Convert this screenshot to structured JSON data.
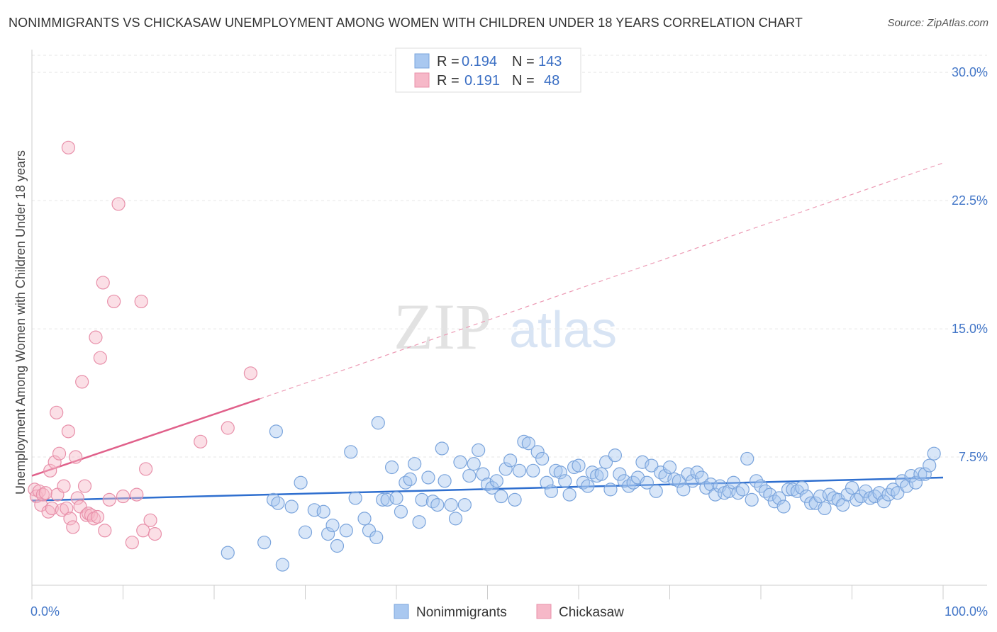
{
  "header": {
    "title": "NONIMMIGRANTS VS CHICKASAW UNEMPLOYMENT AMONG WOMEN WITH CHILDREN UNDER 18 YEARS CORRELATION CHART",
    "source": "Source: ZipAtlas.com"
  },
  "watermark": {
    "zip": "ZIP",
    "atlas": "atlas"
  },
  "legend": {
    "rows": [
      {
        "r_label": "R =",
        "r_value": "0.194",
        "n_label": "N =",
        "n_value": "143",
        "color": "#a9c8f0"
      },
      {
        "r_label": "R =",
        "r_value": "0.191",
        "n_label": "N =",
        "n_value": "48",
        "color": "#f6b8c8"
      }
    ]
  },
  "bottom_legend": [
    "Nonimmigrants",
    "Chickasaw"
  ],
  "chart_data": {
    "type": "scatter",
    "title": "NONIMMIGRANTS VS CHICKASAW UNEMPLOYMENT AMONG WOMEN WITH CHILDREN UNDER 18 YEARS CORRELATION CHART",
    "xlabel": "",
    "ylabel": "Unemployment Among Women with Children Under 18 years",
    "xlim": [
      0,
      100
    ],
    "ylim": [
      0,
      31
    ],
    "x_tick_labels": [
      "0.0%",
      "100.0%"
    ],
    "y_ticks": [
      7.5,
      15.0,
      22.5,
      30.0
    ],
    "y_tick_labels": [
      "7.5%",
      "15.0%",
      "22.5%",
      "30.0%"
    ],
    "grid": "horizontal dashed",
    "legend_position": "top-center",
    "colors": {
      "nonimmigrants": "#6ea0e0",
      "chickasaw": "#ec8aa7",
      "blue_line": "#2f6fcf",
      "pink_line": "#e0608a"
    },
    "series": [
      {
        "name": "Nonimmigrants",
        "points": [
          [
            21.5,
            1.9
          ],
          [
            25.5,
            2.5
          ],
          [
            26.5,
            5.0
          ],
          [
            27.0,
            4.8
          ],
          [
            26.8,
            9.0
          ],
          [
            27.5,
            1.2
          ],
          [
            28.5,
            4.6
          ],
          [
            29.5,
            6.0
          ],
          [
            30.0,
            3.1
          ],
          [
            31.0,
            4.4
          ],
          [
            32.0,
            4.3
          ],
          [
            32.5,
            3.0
          ],
          [
            33.0,
            3.5
          ],
          [
            33.5,
            2.3
          ],
          [
            34.5,
            3.2
          ],
          [
            35.0,
            7.8
          ],
          [
            35.5,
            5.1
          ],
          [
            36.5,
            3.9
          ],
          [
            37.0,
            3.2
          ],
          [
            37.8,
            2.8
          ],
          [
            38.0,
            9.5
          ],
          [
            38.5,
            5.0
          ],
          [
            39.0,
            5.0
          ],
          [
            39.5,
            6.9
          ],
          [
            40.0,
            5.1
          ],
          [
            40.5,
            4.3
          ],
          [
            41.0,
            6.0
          ],
          [
            41.5,
            6.2
          ],
          [
            42.0,
            7.1
          ],
          [
            42.5,
            3.7
          ],
          [
            42.8,
            5.0
          ],
          [
            43.5,
            6.3
          ],
          [
            44.0,
            4.9
          ],
          [
            44.5,
            4.7
          ],
          [
            45.0,
            8.0
          ],
          [
            45.3,
            6.1
          ],
          [
            46.0,
            4.7
          ],
          [
            46.5,
            3.9
          ],
          [
            47.0,
            7.2
          ],
          [
            47.5,
            4.7
          ],
          [
            48.0,
            6.4
          ],
          [
            48.5,
            7.1
          ],
          [
            49.0,
            7.9
          ],
          [
            49.5,
            6.5
          ],
          [
            50.0,
            5.9
          ],
          [
            50.5,
            5.7
          ],
          [
            51.0,
            6.1
          ],
          [
            51.5,
            5.2
          ],
          [
            52.0,
            6.8
          ],
          [
            52.5,
            7.3
          ],
          [
            53.0,
            5.0
          ],
          [
            53.5,
            6.7
          ],
          [
            54.0,
            8.4
          ],
          [
            54.5,
            8.3
          ],
          [
            55.0,
            6.7
          ],
          [
            55.5,
            7.8
          ],
          [
            56.0,
            7.4
          ],
          [
            56.5,
            6.0
          ],
          [
            57.0,
            5.5
          ],
          [
            57.5,
            6.7
          ],
          [
            58.0,
            6.6
          ],
          [
            58.5,
            6.1
          ],
          [
            59.0,
            5.3
          ],
          [
            59.5,
            6.9
          ],
          [
            60.0,
            7.0
          ],
          [
            60.5,
            6.0
          ],
          [
            61.0,
            5.8
          ],
          [
            61.5,
            6.6
          ],
          [
            62.0,
            6.4
          ],
          [
            62.5,
            6.5
          ],
          [
            63.0,
            7.2
          ],
          [
            63.5,
            5.6
          ],
          [
            64.0,
            7.6
          ],
          [
            64.5,
            6.5
          ],
          [
            65.0,
            6.1
          ],
          [
            65.5,
            5.8
          ],
          [
            66.0,
            6.0
          ],
          [
            66.5,
            6.3
          ],
          [
            67.0,
            7.2
          ],
          [
            67.5,
            6.0
          ],
          [
            68.0,
            7.0
          ],
          [
            68.5,
            5.5
          ],
          [
            69.0,
            6.6
          ],
          [
            69.5,
            6.4
          ],
          [
            70.0,
            6.9
          ],
          [
            70.5,
            6.2
          ],
          [
            71.0,
            6.1
          ],
          [
            71.5,
            5.6
          ],
          [
            72.0,
            6.5
          ],
          [
            72.5,
            6.1
          ],
          [
            73.0,
            6.6
          ],
          [
            73.5,
            6.3
          ],
          [
            74.0,
            5.7
          ],
          [
            74.5,
            5.9
          ],
          [
            75.0,
            5.3
          ],
          [
            75.5,
            5.8
          ],
          [
            76.0,
            5.4
          ],
          [
            76.5,
            5.5
          ],
          [
            77.0,
            6.0
          ],
          [
            77.5,
            5.4
          ],
          [
            78.0,
            5.6
          ],
          [
            78.5,
            7.4
          ],
          [
            79.0,
            5.0
          ],
          [
            79.5,
            6.1
          ],
          [
            80.0,
            5.8
          ],
          [
            80.5,
            5.5
          ],
          [
            81.0,
            5.3
          ],
          [
            81.5,
            4.9
          ],
          [
            82.0,
            5.1
          ],
          [
            82.5,
            4.6
          ],
          [
            83.0,
            5.6
          ],
          [
            83.5,
            5.6
          ],
          [
            84.0,
            5.5
          ],
          [
            84.5,
            5.7
          ],
          [
            85.0,
            5.2
          ],
          [
            85.5,
            4.8
          ],
          [
            86.0,
            4.8
          ],
          [
            86.5,
            5.2
          ],
          [
            87.0,
            4.5
          ],
          [
            87.5,
            5.3
          ],
          [
            88.0,
            5.1
          ],
          [
            88.5,
            5.0
          ],
          [
            89.0,
            4.7
          ],
          [
            89.5,
            5.3
          ],
          [
            90.0,
            5.7
          ],
          [
            90.5,
            5.0
          ],
          [
            91.0,
            5.2
          ],
          [
            91.5,
            5.5
          ],
          [
            92.0,
            5.1
          ],
          [
            92.5,
            5.2
          ],
          [
            93.0,
            5.4
          ],
          [
            93.5,
            4.9
          ],
          [
            94.0,
            5.3
          ],
          [
            94.5,
            5.6
          ],
          [
            95.0,
            5.4
          ],
          [
            95.5,
            6.1
          ],
          [
            96.0,
            5.8
          ],
          [
            96.5,
            6.4
          ],
          [
            97.0,
            6.0
          ],
          [
            97.5,
            6.5
          ],
          [
            98.0,
            6.5
          ],
          [
            98.5,
            7.0
          ],
          [
            99.0,
            7.7
          ]
        ],
        "trend": {
          "x": [
            0,
            100
          ],
          "y": [
            4.95,
            6.3
          ]
        }
      },
      {
        "name": "Chickasaw",
        "points": [
          [
            0.3,
            5.6
          ],
          [
            0.5,
            5.2
          ],
          [
            0.8,
            5.5
          ],
          [
            1.0,
            4.7
          ],
          [
            1.2,
            5.3
          ],
          [
            1.5,
            5.4
          ],
          [
            1.8,
            4.3
          ],
          [
            2.0,
            6.7
          ],
          [
            2.2,
            4.5
          ],
          [
            2.5,
            7.2
          ],
          [
            2.7,
            10.1
          ],
          [
            2.8,
            5.3
          ],
          [
            3.0,
            7.7
          ],
          [
            3.3,
            4.4
          ],
          [
            3.5,
            5.8
          ],
          [
            3.8,
            4.5
          ],
          [
            4.0,
            9.0
          ],
          [
            4.2,
            3.9
          ],
          [
            4.5,
            3.4
          ],
          [
            4.8,
            7.5
          ],
          [
            5.0,
            5.1
          ],
          [
            5.3,
            4.6
          ],
          [
            5.5,
            11.9
          ],
          [
            5.8,
            5.8
          ],
          [
            6.0,
            4.1
          ],
          [
            6.2,
            4.2
          ],
          [
            6.5,
            4.1
          ],
          [
            6.8,
            3.9
          ],
          [
            7.0,
            14.5
          ],
          [
            7.2,
            4.0
          ],
          [
            7.5,
            13.3
          ],
          [
            7.8,
            17.7
          ],
          [
            8.0,
            3.2
          ],
          [
            8.5,
            5.0
          ],
          [
            9.0,
            16.6
          ],
          [
            9.5,
            22.3
          ],
          [
            10.0,
            5.2
          ],
          [
            11.0,
            2.5
          ],
          [
            11.5,
            5.3
          ],
          [
            12.0,
            16.6
          ],
          [
            12.2,
            3.2
          ],
          [
            12.5,
            6.8
          ],
          [
            13.0,
            3.8
          ],
          [
            13.5,
            3.0
          ],
          [
            18.5,
            8.4
          ],
          [
            21.5,
            9.2
          ],
          [
            24.0,
            12.4
          ],
          [
            4.0,
            25.6
          ]
        ],
        "trend": {
          "x": [
            0,
            25
          ],
          "y": [
            6.4,
            10.9
          ]
        },
        "trend_extension": {
          "x": [
            25,
            100
          ],
          "y": [
            10.9,
            24.7
          ]
        }
      }
    ]
  }
}
